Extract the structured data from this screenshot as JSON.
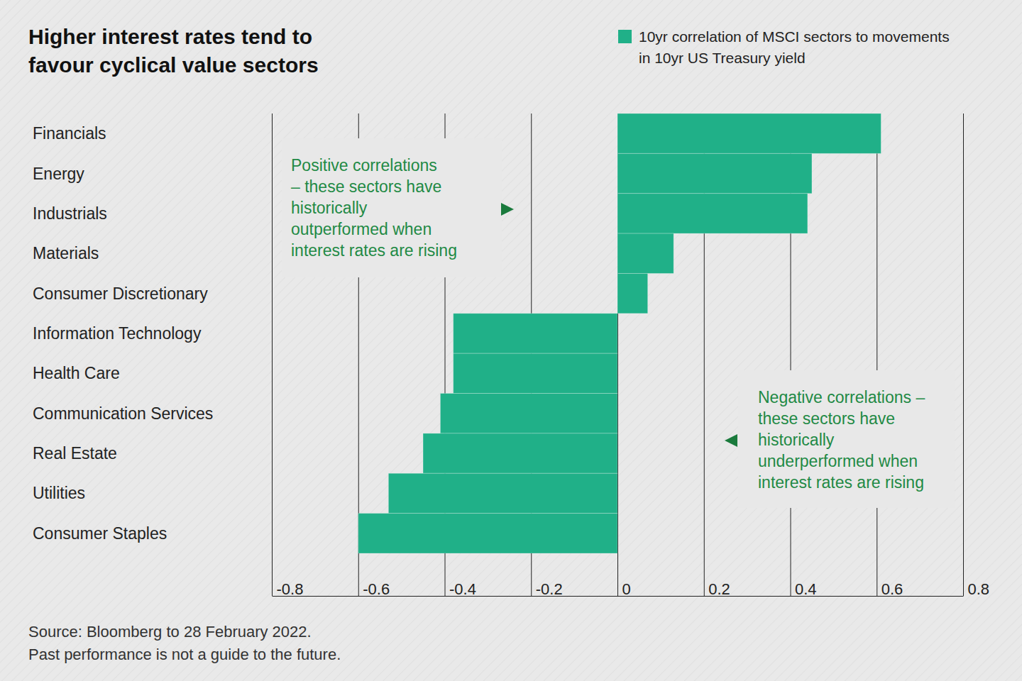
{
  "chart_data": {
    "type": "bar",
    "orientation": "horizontal",
    "title": "Higher interest rates tend to\nfavour cyclical value sectors",
    "categories": [
      "Financials",
      "Energy",
      "Industrials",
      "Materials",
      "Consumer Discretionary",
      "Information Technology",
      "Health Care",
      "Communication Services",
      "Real Estate",
      "Utilities",
      "Consumer Staples"
    ],
    "series": [
      {
        "name": "10yr correlation of MSCI sectors to movements\nin 10yr US Treasury yield",
        "color": "#20b088",
        "values": [
          0.61,
          0.45,
          0.44,
          0.13,
          0.07,
          -0.38,
          -0.38,
          -0.41,
          -0.45,
          -0.53,
          -0.6
        ]
      }
    ],
    "xlim": [
      -0.8,
      0.8
    ],
    "xticks": [
      -0.8,
      -0.6,
      -0.4,
      -0.2,
      0,
      0.2,
      0.4,
      0.6,
      0.8
    ],
    "grid": true,
    "legend": "top-right",
    "annotations": [
      "Positive correlations\n– these sectors have\nhistorically\noutperformed when\ninterest rates are rising",
      "Negative correlations –\nthese sectors have\nhistorically\nunderperformed when\ninterest rates are rising"
    ],
    "source": "Source: Bloomberg to 28 February 2022.",
    "footnote": "Past performance is not a guide to the future."
  }
}
